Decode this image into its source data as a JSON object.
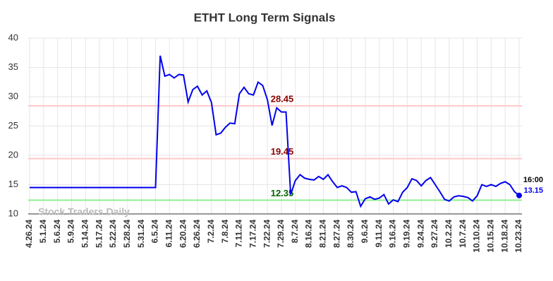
{
  "chart_data": {
    "type": "line",
    "title": "ETHT Long Term Signals",
    "categories": [
      "4.26.24",
      null,
      null,
      "5.1.24",
      null,
      null,
      "5.6.24",
      null,
      null,
      "5.9.24",
      null,
      null,
      "5.14.24",
      null,
      null,
      "5.17.24",
      null,
      null,
      "5.22.24",
      null,
      null,
      "5.28.24",
      null,
      null,
      "5.31.24",
      null,
      null,
      "6.5.24",
      null,
      null,
      "6.11.24",
      null,
      null,
      "6.20.24",
      null,
      null,
      "6.26.24",
      null,
      null,
      "7.2.24",
      null,
      null,
      "7.8.24",
      null,
      null,
      "7.11.24",
      null,
      null,
      "7.17.24",
      null,
      null,
      "7.22.24",
      null,
      null,
      "7.29.24",
      null,
      null,
      "8.7.24",
      null,
      null,
      "8.16.24",
      null,
      null,
      "8.21.24",
      null,
      null,
      "8.27.24",
      null,
      null,
      "8.30.24",
      null,
      null,
      "9.6.24",
      null,
      null,
      "9.11.24",
      null,
      null,
      "9.16.24",
      null,
      null,
      "9.19.24",
      null,
      null,
      "9.24.24",
      null,
      null,
      "9.27.24",
      null,
      null,
      "10.2.24",
      null,
      null,
      "10.7.24",
      null,
      null,
      "10.10.24",
      null,
      null,
      "10.15.24",
      null,
      null,
      "10.18.24",
      null,
      null,
      "10.23.24"
    ],
    "values": [
      14.5,
      14.5,
      14.5,
      14.5,
      14.5,
      14.5,
      14.5,
      14.5,
      14.5,
      14.5,
      14.5,
      14.5,
      14.5,
      14.5,
      14.5,
      14.5,
      14.5,
      14.5,
      14.5,
      14.5,
      14.5,
      14.5,
      14.5,
      14.5,
      14.5,
      14.5,
      14.5,
      14.5,
      37,
      33.5,
      33.8,
      33.2,
      33.8,
      33.7,
      29.1,
      31.2,
      31.8,
      30.3,
      31,
      29,
      23.5,
      23.8,
      24.8,
      25.5,
      25.4,
      30.5,
      31.6,
      30.5,
      30.3,
      32.5,
      31.9,
      29.5,
      25.1,
      28.1,
      27.4,
      27.4,
      13.3,
      15.7,
      16.7,
      16.1,
      15.9,
      15.8,
      16.4,
      15.9,
      16.7,
      15.5,
      14.5,
      14.8,
      14.5,
      13.7,
      13.8,
      11.3,
      12.6,
      12.9,
      12.5,
      12.7,
      13.3,
      11.7,
      12.4,
      12.1,
      13.7,
      14.5,
      16,
      15.7,
      14.8,
      15.7,
      16.2,
      15,
      13.8,
      12.5,
      12.2,
      12.9,
      13.1,
      13,
      12.8,
      12.2,
      13.1,
      15,
      14.7,
      15,
      14.7,
      15.2,
      15.5,
      15,
      13.8,
      13.15
    ],
    "color": "#0000ee",
    "ylim": [
      10,
      40
    ],
    "yticks": [
      10,
      15,
      20,
      25,
      30,
      35,
      40
    ],
    "grid": true,
    "levels": [
      {
        "value": 28.45,
        "color": "#ffc8c8",
        "label_color": "#8b0000"
      },
      {
        "value": 19.45,
        "color": "#ffc8c8",
        "label_color": "#8b0000"
      },
      {
        "value": 12.35,
        "color": "#90ee90",
        "label_color": "#006400"
      }
    ],
    "last_time": "16:00",
    "watermark": "Stock Traders Daily"
  }
}
